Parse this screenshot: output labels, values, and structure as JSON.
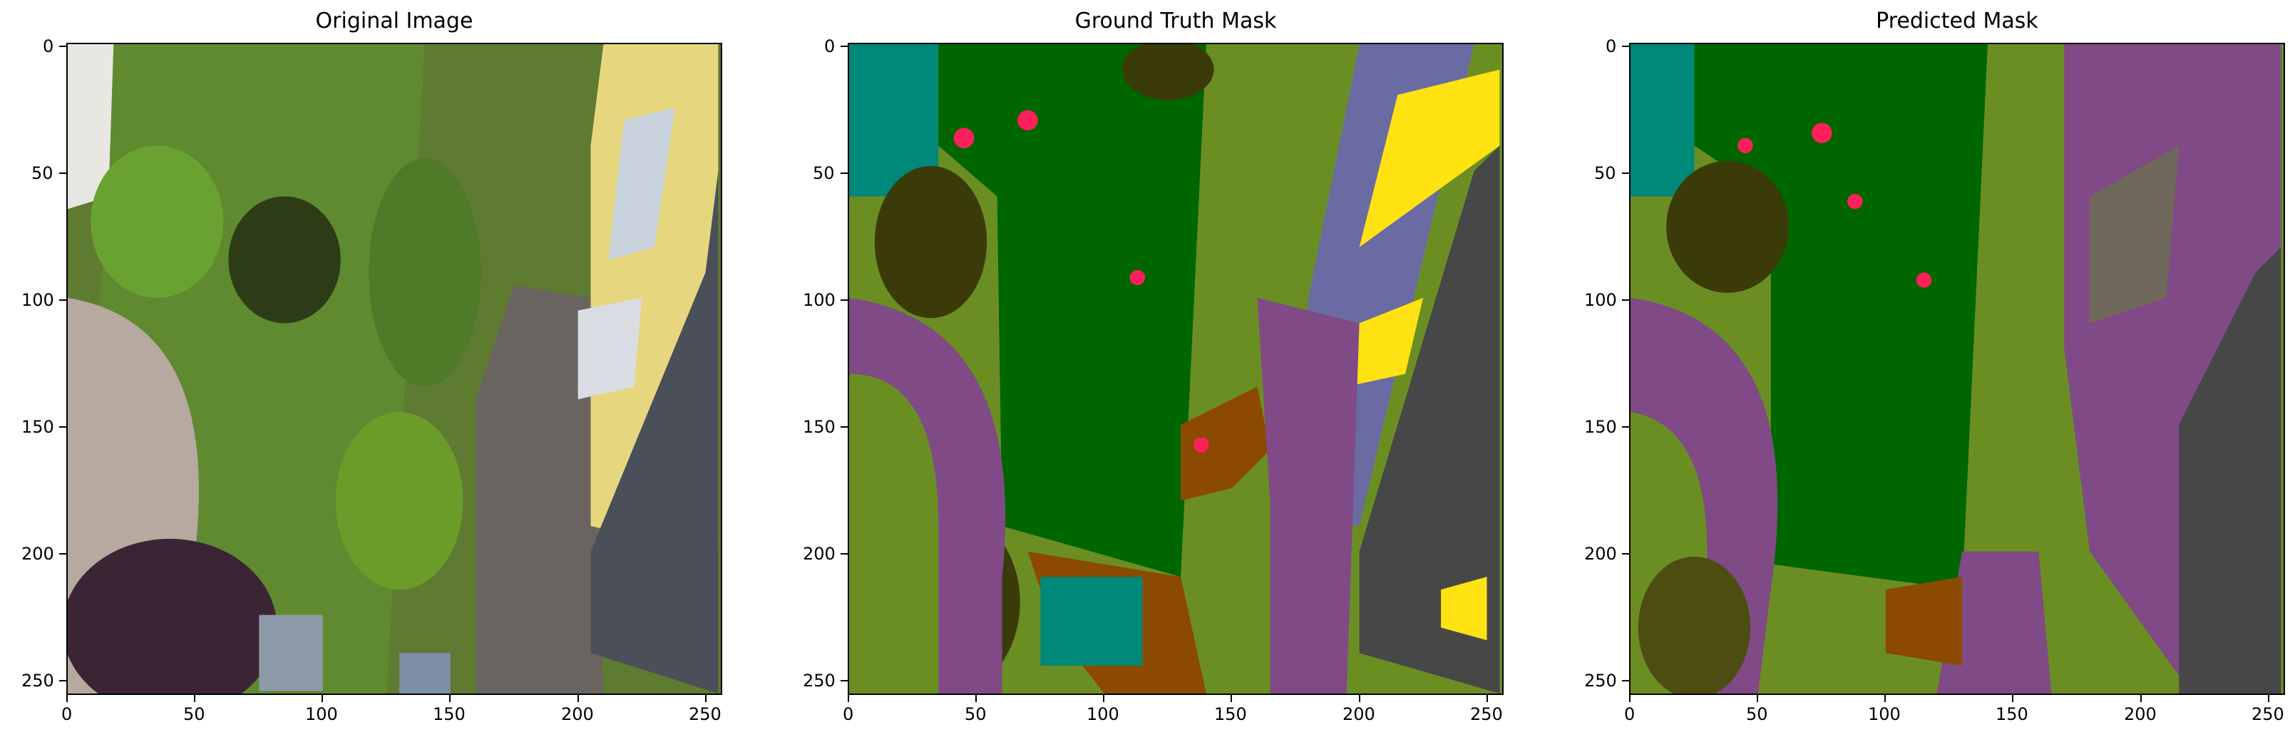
{
  "figure": {
    "panels": [
      {
        "id": "original",
        "title": "Original Image",
        "x_ticks": [
          "0",
          "50",
          "100",
          "150",
          "200",
          "250"
        ],
        "y_ticks": [
          "0",
          "50",
          "100",
          "150",
          "200",
          "250"
        ]
      },
      {
        "id": "ground-truth",
        "title": "Ground Truth Mask",
        "x_ticks": [
          "0",
          "50",
          "100",
          "150",
          "200",
          "250"
        ],
        "y_ticks": [
          "0",
          "50",
          "100",
          "150",
          "200",
          "250"
        ]
      },
      {
        "id": "predicted",
        "title": "Predicted Mask",
        "x_ticks": [
          "0",
          "50",
          "100",
          "150",
          "200",
          "250"
        ],
        "y_ticks": [
          "0",
          "50",
          "100",
          "150",
          "200",
          "250"
        ]
      }
    ],
    "colors": {
      "grass": "#006600",
      "vegetation": "#6b8e23",
      "tree": "#3b3b0a",
      "path": "#7f4a86",
      "roof": "#474747",
      "facade": "#6b6ba3",
      "window": "#ffe211",
      "soil": "#8b4a00",
      "water_teal": "#008878",
      "person": "#ff1f5b",
      "gravel": "#70685a"
    }
  }
}
